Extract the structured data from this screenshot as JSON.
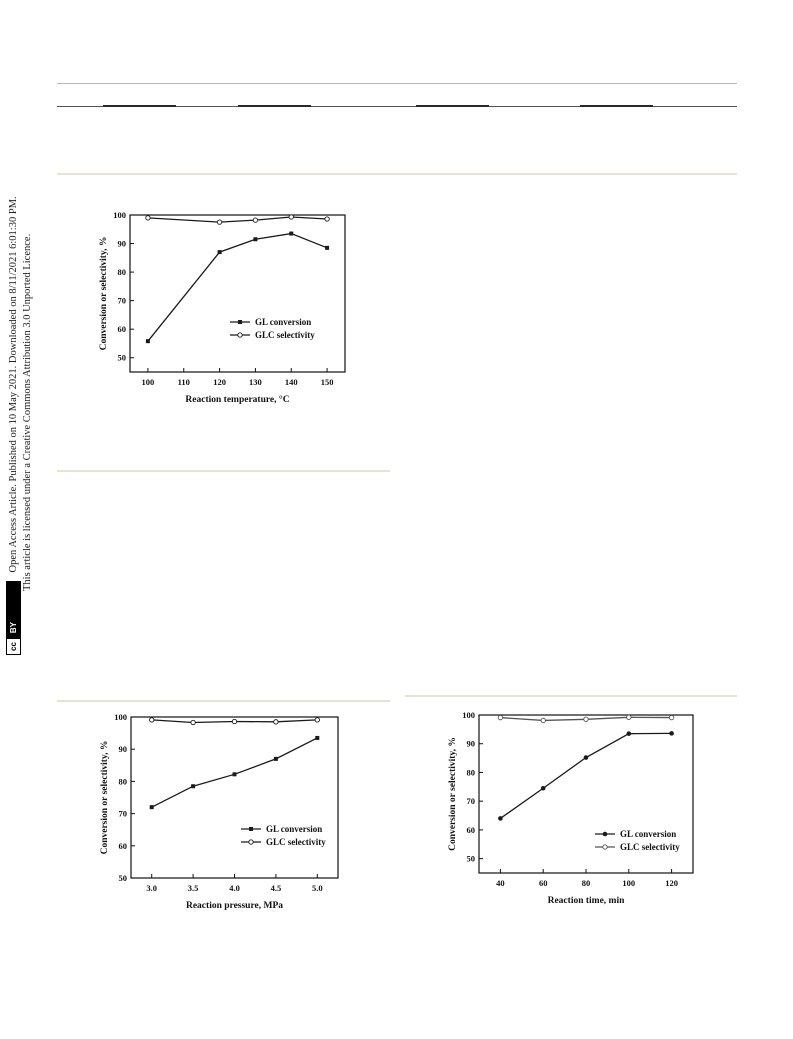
{
  "side_note": {
    "line1": "Open Access Article. Published on 10 May 2021. Downloaded on 8/11/2021 6:01:30 PM.",
    "line2": "This article is licensed under a Creative Commons Attribution 3.0 Unported Licence.",
    "badge_cc": "cc",
    "badge_by": "BY"
  },
  "chart_data": [
    {
      "type": "line",
      "xlabel": "Reaction temperature,  °C",
      "ylabel": "Conversion or selectivity, %",
      "xlim": [
        95,
        155
      ],
      "ylim": [
        45,
        100
      ],
      "xticks": [
        100,
        110,
        120,
        130,
        140,
        150
      ],
      "yticks": [
        50,
        60,
        70,
        80,
        90,
        100
      ],
      "legend_position": "bottom-right",
      "series": [
        {
          "name": "GL conversion",
          "marker": "filled-square",
          "color": "#1a1a1a",
          "x": [
            100,
            120,
            130,
            140,
            150
          ],
          "values": [
            55.8,
            87,
            91.5,
            93.5,
            88.5
          ]
        },
        {
          "name": "GLC selectivity",
          "marker": "open-circle",
          "color": "#1a1a1a",
          "x": [
            100,
            120,
            130,
            140,
            150
          ],
          "values": [
            99,
            97.5,
            98.2,
            99.3,
            98.6
          ]
        }
      ]
    },
    {
      "type": "line",
      "xlabel": "Reaction pressure, MPa",
      "ylabel": "Conversion or selectivity, %",
      "xlim": [
        2.75,
        5.25
      ],
      "ylim": [
        50,
        100
      ],
      "xticks": [
        "3.0",
        "3.5",
        "4.0",
        "4.5",
        "5.0"
      ],
      "yticks": [
        50,
        60,
        70,
        80,
        90,
        100
      ],
      "legend_position": "bottom-right",
      "series": [
        {
          "name": "GL conversion",
          "marker": "filled-square",
          "color": "#1a1a1a",
          "x": [
            3.0,
            3.5,
            4.0,
            4.5,
            5.0
          ],
          "values": [
            72,
            78.5,
            82.2,
            87,
            93.5
          ]
        },
        {
          "name": "GLC selectivity",
          "marker": "open-circle",
          "color": "#1a1a1a",
          "x": [
            3.0,
            3.5,
            4.0,
            4.5,
            5.0
          ],
          "values": [
            99.1,
            98.3,
            98.6,
            98.5,
            99.1
          ]
        }
      ]
    },
    {
      "type": "line",
      "xlabel": "Reaction time, min",
      "ylabel": "Conversion or selectivity, %",
      "xlim": [
        30,
        130
      ],
      "ylim": [
        45,
        100
      ],
      "xticks": [
        40,
        60,
        80,
        100,
        120
      ],
      "yticks": [
        50,
        60,
        70,
        80,
        90,
        100
      ],
      "legend_position": "bottom-right",
      "series": [
        {
          "name": "GL conversion",
          "marker": "filled-circle",
          "color": "#1a1a1a",
          "x": [
            40,
            60,
            80,
            100,
            120
          ],
          "values": [
            64,
            74.5,
            85.2,
            93.5,
            93.6
          ]
        },
        {
          "name": "GLC selectivity",
          "marker": "open-circle",
          "color": "#555555",
          "x": [
            40,
            60,
            80,
            100,
            120
          ],
          "values": [
            99.1,
            98.1,
            98.5,
            99.2,
            99.1
          ]
        }
      ]
    }
  ]
}
